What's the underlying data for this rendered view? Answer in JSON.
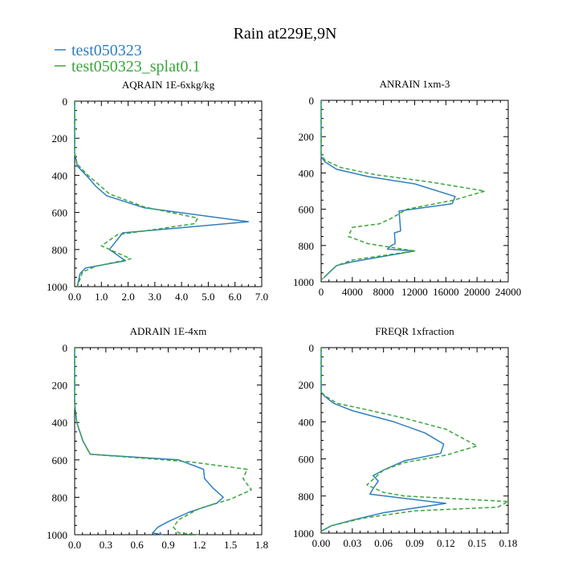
{
  "figure": {
    "title": "Rain at229E,9N",
    "legend": [
      {
        "label": "test050323",
        "color": "#2f7fbf",
        "dash": "solid"
      },
      {
        "label": "test050323_splat0.1",
        "color": "#3aa53a",
        "dash": "dashed"
      }
    ]
  },
  "chart_data": [
    {
      "type": "line",
      "title": "AQRAIN  1E-6xkg/kg",
      "xlim": [
        0,
        7.0
      ],
      "ylim": [
        0,
        1000
      ],
      "y_inverted": true,
      "xticks": [
        0,
        1,
        2,
        3,
        4,
        5,
        6,
        7
      ],
      "xtick_labels": [
        "0.0",
        "1.0",
        "2.0",
        "3.0",
        "4.0",
        "5.0",
        "6.0",
        "7.0"
      ],
      "yticks": [
        0,
        200,
        400,
        600,
        800,
        1000
      ],
      "ytick_labels": [
        "0",
        "200",
        "400",
        "600",
        "800",
        "1000"
      ],
      "series": [
        {
          "name": "test050323",
          "x": [
            0,
            0,
            0.1,
            0.5,
            0.8,
            1.2,
            2.6,
            6.5,
            3.4,
            1.8,
            1.3,
            1.9,
            0.4,
            0.2,
            0.1
          ],
          "y": [
            0,
            280,
            350,
            410,
            460,
            510,
            575,
            650,
            690,
            710,
            800,
            860,
            900,
            930,
            1000
          ]
        },
        {
          "name": "test050323_splat0.1",
          "x": [
            0,
            0,
            0.1,
            0.5,
            0.9,
            1.3,
            2.6,
            4.6,
            4.5,
            2.6,
            1.6,
            1.0,
            2.1,
            0.8,
            0.3,
            0.1
          ],
          "y": [
            0,
            280,
            340,
            400,
            450,
            500,
            570,
            630,
            660,
            700,
            720,
            780,
            850,
            890,
            920,
            1000
          ]
        }
      ]
    },
    {
      "type": "line",
      "title": "ANRAIN  1xm-3",
      "xlim": [
        0,
        24000
      ],
      "ylim": [
        0,
        1000
      ],
      "y_inverted": true,
      "xticks": [
        0,
        4000,
        8000,
        12000,
        16000,
        20000,
        24000
      ],
      "xtick_labels": [
        "0",
        "4000",
        "8000",
        "12000",
        "16000",
        "20000",
        "24000"
      ],
      "yticks": [
        0,
        200,
        400,
        600,
        800,
        1000
      ],
      "ytick_labels": [
        "0",
        "200",
        "400",
        "600",
        "800",
        "1000"
      ],
      "series": [
        {
          "name": "test050323",
          "x": [
            0,
            0,
            500,
            2000,
            6000,
            12000,
            17200,
            16800,
            10000,
            10200,
            9400,
            9500,
            9000,
            8500,
            12000,
            4000,
            2000,
            1000,
            300
          ],
          "y": [
            0,
            310,
            340,
            380,
            420,
            460,
            530,
            570,
            610,
            720,
            730,
            790,
            800,
            820,
            830,
            890,
            910,
            950,
            980
          ]
        },
        {
          "name": "test050323_splat0.1",
          "x": [
            0,
            0,
            500,
            2500,
            7000,
            14000,
            21000,
            17000,
            11000,
            9000,
            7500,
            4000,
            3500,
            6000,
            12000,
            4000,
            2000,
            1000,
            0
          ],
          "y": [
            0,
            300,
            330,
            370,
            410,
            450,
            500,
            550,
            600,
            650,
            680,
            700,
            750,
            790,
            830,
            880,
            910,
            950,
            990
          ]
        }
      ]
    },
    {
      "type": "line",
      "title": "ADRAIN  1E-4xm",
      "xlim": [
        0,
        1.8
      ],
      "ylim": [
        0,
        1000
      ],
      "y_inverted": true,
      "xticks": [
        0,
        0.3,
        0.6,
        0.9,
        1.2,
        1.5,
        1.8
      ],
      "xtick_labels": [
        "0.0",
        "0.3",
        "0.6",
        "0.9",
        "1.2",
        "1.5",
        "1.8"
      ],
      "yticks": [
        0,
        200,
        400,
        600,
        800,
        1000
      ],
      "ytick_labels": [
        "0",
        "200",
        "400",
        "600",
        "800",
        "1000"
      ],
      "series": [
        {
          "name": "test050323",
          "x": [
            0,
            0,
            0.02,
            0.05,
            0.08,
            0.15,
            1.0,
            1.24,
            1.25,
            1.33,
            1.43,
            1.37,
            1.1,
            0.9,
            0.8,
            0.75,
            0.85
          ],
          "y": [
            0,
            300,
            400,
            450,
            500,
            570,
            600,
            650,
            700,
            750,
            800,
            830,
            880,
            930,
            960,
            990,
            1000
          ]
        },
        {
          "name": "test050323_splat0.1",
          "x": [
            0,
            0,
            0.02,
            0.05,
            0.08,
            0.15,
            1.1,
            1.66,
            1.62,
            1.7,
            1.5,
            1.2,
            1.0,
            0.95,
            1.0,
            1.2
          ],
          "y": [
            0,
            300,
            400,
            450,
            500,
            570,
            610,
            650,
            700,
            760,
            810,
            860,
            920,
            960,
            990,
            1000
          ]
        }
      ]
    },
    {
      "type": "line",
      "title": "FREQR  1xfraction",
      "xlim": [
        0,
        0.18
      ],
      "ylim": [
        0,
        1000
      ],
      "y_inverted": true,
      "xticks": [
        0,
        0.03,
        0.06,
        0.09,
        0.12,
        0.15,
        0.18
      ],
      "xtick_labels": [
        "0.00",
        "0.03",
        "0.06",
        "0.09",
        "0.12",
        "0.15",
        "0.18"
      ],
      "yticks": [
        0,
        200,
        400,
        600,
        800,
        1000
      ],
      "ytick_labels": [
        "0",
        "200",
        "400",
        "600",
        "800",
        "1000"
      ],
      "series": [
        {
          "name": "test050323",
          "x": [
            0,
            0,
            0.003,
            0.012,
            0.03,
            0.07,
            0.1,
            0.118,
            0.115,
            0.08,
            0.06,
            0.05,
            0.055,
            0.05,
            0.047,
            0.12,
            0.06,
            0.03,
            0.01,
            0
          ],
          "y": [
            0,
            240,
            260,
            300,
            340,
            400,
            460,
            520,
            570,
            610,
            660,
            690,
            720,
            760,
            790,
            840,
            890,
            930,
            960,
            990
          ]
        },
        {
          "name": "test050323_splat0.1",
          "x": [
            0,
            0,
            0.004,
            0.015,
            0.04,
            0.08,
            0.12,
            0.15,
            0.12,
            0.08,
            0.06,
            0.044,
            0.06,
            0.08,
            0.18,
            0.17,
            0.09,
            0.04,
            0.01,
            0
          ],
          "y": [
            0,
            240,
            260,
            300,
            330,
            380,
            440,
            530,
            580,
            620,
            660,
            740,
            780,
            800,
            830,
            860,
            880,
            920,
            960,
            990
          ]
        }
      ]
    }
  ]
}
